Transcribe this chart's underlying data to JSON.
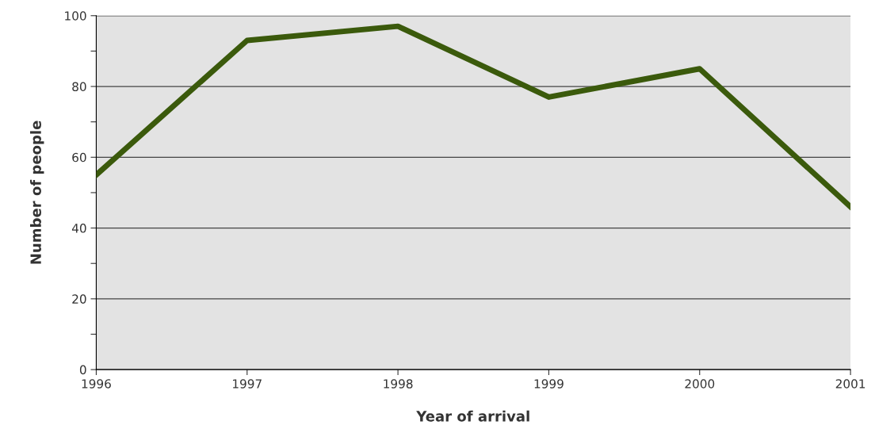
{
  "chart_data": {
    "type": "line",
    "xlabel": "Year of arrival",
    "ylabel": "Number of people",
    "x": [
      1996,
      1997,
      1998,
      1999,
      2000,
      2001
    ],
    "series": [
      {
        "color": "#3b5a0c",
        "values": [
          55,
          93,
          97,
          77,
          85,
          46
        ]
      }
    ],
    "xlim": [
      1996,
      2001
    ],
    "xticks": [
      1996,
      1997,
      1998,
      1999,
      2000,
      2001
    ],
    "ylim": [
      0,
      100
    ],
    "yticks": [
      0,
      {
        "value": 10,
        "label": null
      },
      20,
      {
        "value": 30,
        "label": null
      },
      40,
      {
        "value": 50,
        "label": null
      },
      60,
      {
        "value": 70,
        "label": null
      },
      80,
      {
        "value": 90,
        "label": null
      },
      100
    ],
    "grid": "y",
    "legend": false,
    "marker": "none",
    "line_style": "solid"
  }
}
